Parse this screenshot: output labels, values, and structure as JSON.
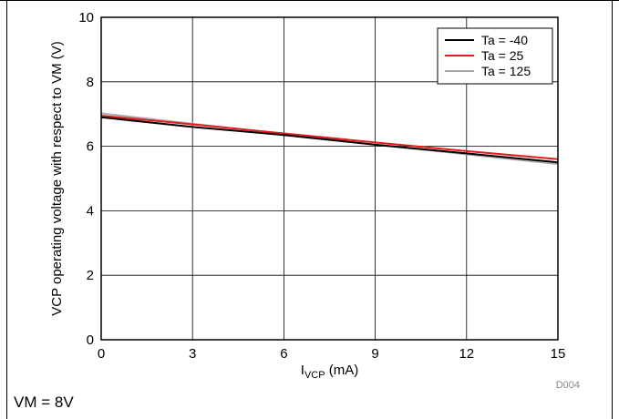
{
  "chart_data": {
    "type": "line",
    "xlabel_main": "I",
    "xlabel_sub": "VCP",
    "xlabel_unit": " (mA)",
    "ylabel": "VCP operating voltage with respect to VM (V)",
    "xlim": [
      0,
      15
    ],
    "ylim": [
      0,
      10
    ],
    "xticks": [
      "0",
      "3",
      "6",
      "9",
      "12",
      "15"
    ],
    "yticks": [
      "0",
      "2",
      "4",
      "6",
      "8",
      "10"
    ],
    "grid": true,
    "legend_position": "top-right",
    "series": [
      {
        "name": "Ta = -40",
        "color": "#000000",
        "x": [
          0,
          3,
          6,
          9,
          12,
          15
        ],
        "y": [
          6.9,
          6.6,
          6.35,
          6.05,
          5.78,
          5.5
        ]
      },
      {
        "name": "Ta = 25",
        "color": "#e41a1c",
        "x": [
          0,
          3,
          6,
          9,
          12,
          15
        ],
        "y": [
          6.95,
          6.68,
          6.4,
          6.12,
          5.85,
          5.6
        ]
      },
      {
        "name": "Ta = 125",
        "color": "#aaaaaa",
        "x": [
          0,
          3,
          6,
          9,
          12,
          15
        ],
        "y": [
          7.02,
          6.7,
          6.38,
          6.05,
          5.75,
          5.45
        ]
      }
    ],
    "code": "D004"
  },
  "note": "VM = 8V"
}
